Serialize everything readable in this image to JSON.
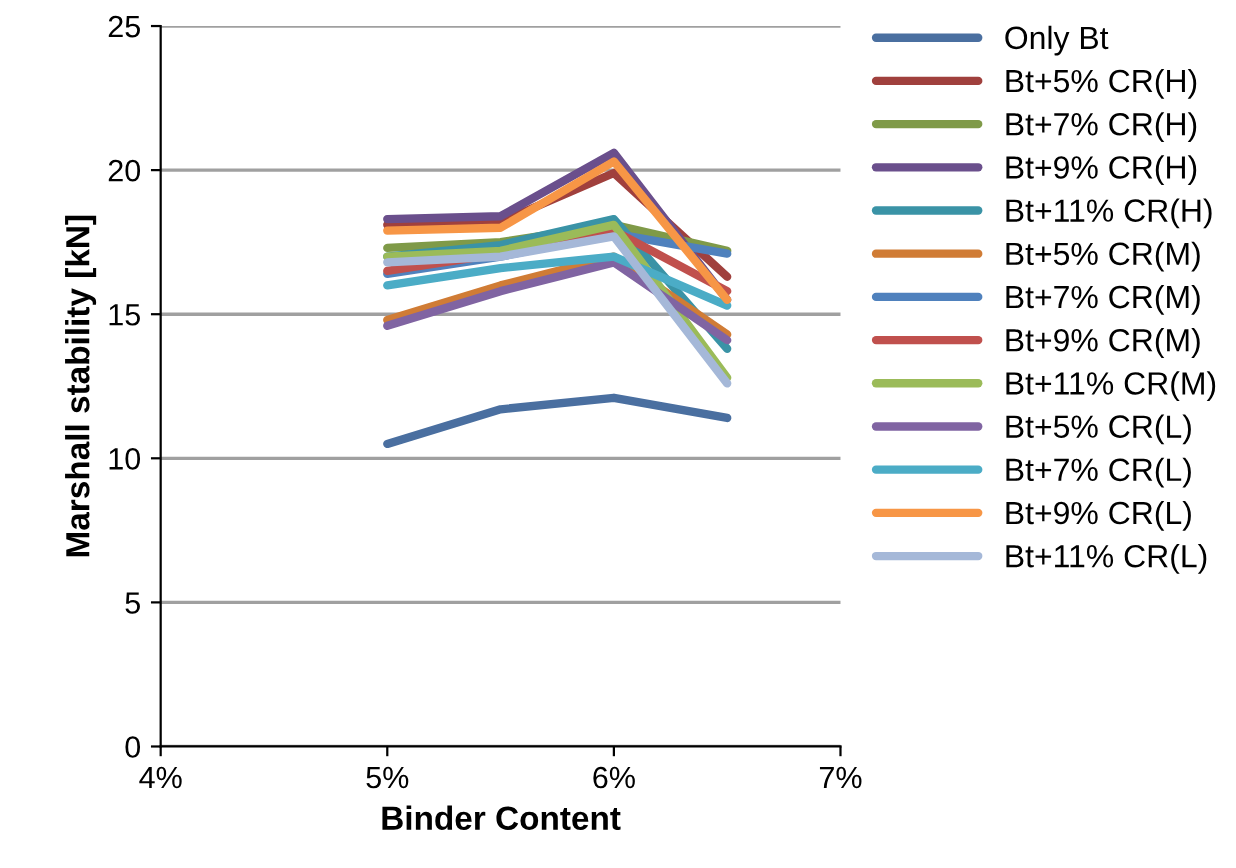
{
  "chart_data": {
    "type": "line",
    "xlabel": "Binder Content",
    "ylabel": "Marshall stability [kN]",
    "x": [
      5,
      5.5,
      6,
      6.5
    ],
    "xlim": [
      4,
      7
    ],
    "xticks": [
      {
        "value": 4,
        "label": "4%"
      },
      {
        "value": 5,
        "label": "5%"
      },
      {
        "value": 6,
        "label": "6%"
      },
      {
        "value": 7,
        "label": "7%"
      }
    ],
    "ylim": [
      0,
      25
    ],
    "yticks": [
      0,
      5,
      10,
      15,
      20,
      25
    ],
    "grid": "y",
    "legend": "right",
    "marker": "none",
    "line_style": "solid",
    "series": [
      {
        "name": "Only Bt",
        "color": "#4a6fa0",
        "values": [
          10.5,
          11.7,
          12.1,
          11.4
        ]
      },
      {
        "name": "Bt+5% CR(H)",
        "color": "#a0403d",
        "values": [
          18.1,
          18.2,
          19.9,
          16.3
        ]
      },
      {
        "name": "Bt+7% CR(H)",
        "color": "#7f9a48",
        "values": [
          17.3,
          17.5,
          18.1,
          17.2
        ]
      },
      {
        "name": "Bt+9% CR(H)",
        "color": "#6a4f8c",
        "values": [
          18.3,
          18.4,
          20.6,
          15.5
        ]
      },
      {
        "name": "Bt+11% CR(H)",
        "color": "#3a93a6",
        "values": [
          17.0,
          17.4,
          18.3,
          13.8
        ]
      },
      {
        "name": "Bt+5% CR(M)",
        "color": "#d07c35",
        "values": [
          14.8,
          16.0,
          17.0,
          14.3
        ]
      },
      {
        "name": "Bt+7% CR(M)",
        "color": "#4f81bd",
        "values": [
          16.4,
          17.0,
          17.8,
          17.1
        ]
      },
      {
        "name": "Bt+9% CR(M)",
        "color": "#c0504d",
        "values": [
          16.5,
          17.1,
          17.9,
          15.8
        ]
      },
      {
        "name": "Bt+11% CR(M)",
        "color": "#9bbb59",
        "values": [
          17.0,
          17.2,
          18.1,
          12.8
        ]
      },
      {
        "name": "Bt+5% CR(L)",
        "color": "#8064a2",
        "values": [
          14.6,
          15.8,
          16.8,
          14.1
        ]
      },
      {
        "name": "Bt+7% CR(L)",
        "color": "#4bacc6",
        "values": [
          16.0,
          16.6,
          17.0,
          15.3
        ]
      },
      {
        "name": "Bt+9% CR(L)",
        "color": "#f79646",
        "values": [
          17.9,
          18.0,
          20.3,
          15.5
        ]
      },
      {
        "name": "Bt+11% CR(L)",
        "color": "#a5b8d8",
        "values": [
          16.8,
          17.0,
          17.7,
          12.6
        ]
      }
    ]
  }
}
